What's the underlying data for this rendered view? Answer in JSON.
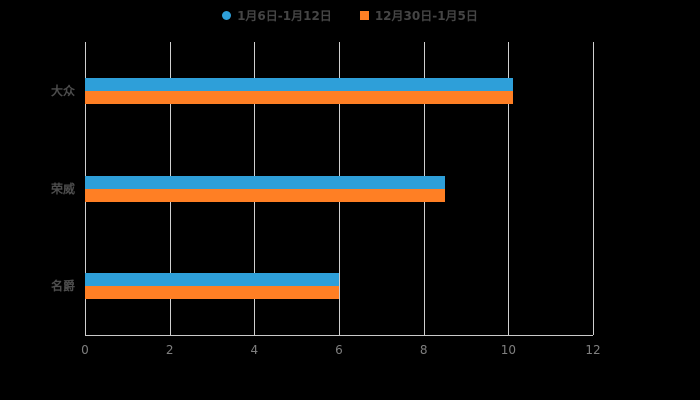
{
  "chart_data": {
    "type": "bar",
    "orientation": "horizontal",
    "title": "",
    "categories": [
      "大众",
      "荣威",
      "名爵"
    ],
    "series": [
      {
        "name": "1月6日-1月12日",
        "color": "#2E9FD9",
        "marker": "circle",
        "values": [
          10.1,
          8.5,
          6
        ]
      },
      {
        "name": "12月30日-1月5日",
        "color": "#FF7F24",
        "marker": "square",
        "values": [
          10.1,
          8.5,
          6
        ]
      }
    ],
    "xlabel": "",
    "ylabel": "",
    "xlim": [
      0,
      12
    ],
    "x_ticks": [
      0,
      2,
      4,
      6,
      8,
      10,
      12
    ],
    "grid": true,
    "legend_position": "top"
  },
  "colors": {
    "background": "#000000",
    "grid": "#D0D0D0",
    "axis": "#C9C9C9",
    "tick_text": "#7F7F7F",
    "category_text": "#4D4D4D",
    "legend_text": "#454545"
  }
}
